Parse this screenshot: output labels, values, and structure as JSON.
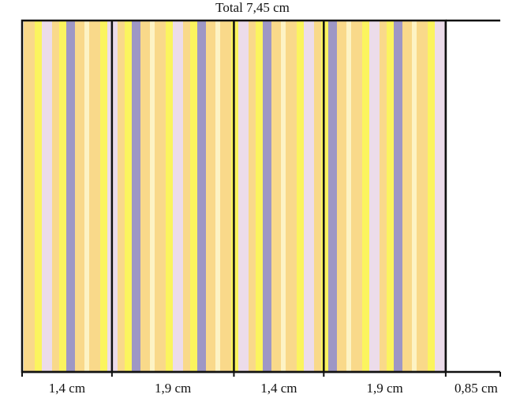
{
  "total_label": "Total 7,45 cm",
  "segments": [
    {
      "label": "1,4 cm",
      "width_cm": 1.4,
      "striped": true
    },
    {
      "label": "1,9 cm",
      "width_cm": 1.9,
      "striped": true
    },
    {
      "label": "1,4 cm",
      "width_cm": 1.4,
      "striped": true
    },
    {
      "label": "1,9 cm",
      "width_cm": 1.9,
      "striped": true
    },
    {
      "label": "0,85 cm",
      "width_cm": 0.85,
      "striped": false
    }
  ],
  "colors": {
    "orange": "#f9d98a",
    "yellow": "#fbf45e",
    "lilac": "#ecdcea",
    "purple": "#9e97c5",
    "cream": "#fdf3c4",
    "outline": "#111111"
  }
}
